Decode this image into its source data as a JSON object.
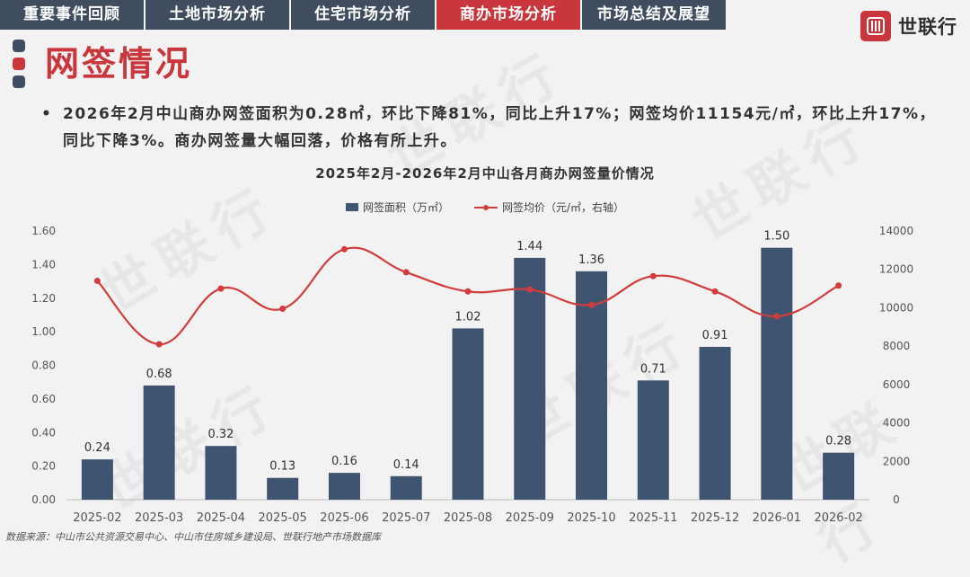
{
  "tabs": [
    {
      "label": "重要事件回顾",
      "active": false
    },
    {
      "label": "土地市场分析",
      "active": false
    },
    {
      "label": "住宅市场分析",
      "active": false
    },
    {
      "label": "商办市场分析",
      "active": true
    },
    {
      "label": "市场总结及展望",
      "active": false
    }
  ],
  "logo": {
    "text": "世联行"
  },
  "watermark_text": "世联行",
  "page_title": "网签情况",
  "bullet": "2026年2月中山商办网签面积为0.28㎡，环比下降81%，同比上升17%；网签均价11154元/㎡，环比上升17%，同比下降3%。商办网签量大幅回落，价格有所上升。",
  "footer": "数据来源：中山市公共资源交易中心、中山市住房城乡建设局、世联行地产市场数据库",
  "colors": {
    "bar": "#3f5470",
    "line": "#d13c3c",
    "accent": "#c9363c",
    "tab": "#3f4d5e"
  },
  "chart_data": {
    "type": "bar",
    "title": "2025年2月-2026年2月中山各月商办网签量价情况",
    "categories": [
      "2025-02",
      "2025-03",
      "2025-04",
      "2025-05",
      "2025-06",
      "2025-07",
      "2025-08",
      "2025-09",
      "2025-10",
      "2025-11",
      "2025-12",
      "2026-01",
      "2026-02"
    ],
    "series": [
      {
        "name": "网签面积（万㎡）",
        "type": "bar",
        "axis": "left",
        "values": [
          0.24,
          0.68,
          0.32,
          0.13,
          0.16,
          0.14,
          1.02,
          1.44,
          1.36,
          0.71,
          0.91,
          1.5,
          0.28
        ]
      },
      {
        "name": "网签均价（元/㎡，右轴）",
        "type": "line",
        "axis": "right",
        "values": [
          11400,
          8100,
          11000,
          9950,
          13050,
          11850,
          10850,
          10950,
          10150,
          11650,
          10850,
          9550,
          11154
        ]
      }
    ],
    "y_left": {
      "min": 0,
      "max": 1.6,
      "ticks": [
        "0.00",
        "0.20",
        "0.40",
        "0.60",
        "0.80",
        "1.00",
        "1.20",
        "1.40",
        "1.60"
      ]
    },
    "y_right": {
      "min": 0,
      "max": 14000,
      "ticks": [
        "0",
        "2000",
        "4000",
        "6000",
        "8000",
        "10000",
        "12000",
        "14000"
      ]
    },
    "legend": "top",
    "grid": false
  }
}
